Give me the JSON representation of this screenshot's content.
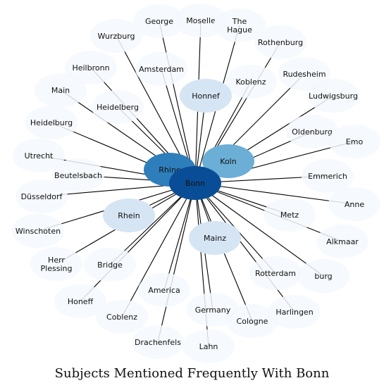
{
  "title": "Subjects Mentioned Frequently With Bonn",
  "center": "Bonn",
  "colors": {
    "edge": "#000000",
    "pale": "#f4f8fd",
    "light": "#d6e5f4",
    "mid": "#6baed6",
    "dark2": "#2e7ebc",
    "dark": "#084d96"
  },
  "nodes": [
    {
      "id": "bonn",
      "label": "Bonn",
      "shade": "dark"
    },
    {
      "id": "rhine",
      "label": "Rhine",
      "shade": "dark2"
    },
    {
      "id": "koln",
      "label": "Koln",
      "shade": "mid"
    },
    {
      "id": "honnef",
      "label": "Honnef",
      "shade": "light"
    },
    {
      "id": "mainz",
      "label": "Mainz",
      "shade": "light"
    },
    {
      "id": "rhein",
      "label": "Rhein",
      "shade": "light"
    },
    {
      "id": "george",
      "label": "George",
      "shade": "pale"
    },
    {
      "id": "moselle",
      "label": "Moselle",
      "shade": "pale"
    },
    {
      "id": "the-hague",
      "label": "The Hague",
      "shade": "pale"
    },
    {
      "id": "wurzburg",
      "label": "Wurzburg",
      "shade": "pale"
    },
    {
      "id": "rothenburg",
      "label": "Rothenburg",
      "shade": "pale"
    },
    {
      "id": "heilbronn",
      "label": "Heilbronn",
      "shade": "pale"
    },
    {
      "id": "amsterdam",
      "label": "Amsterdam",
      "shade": "pale"
    },
    {
      "id": "rudesheim",
      "label": "Rudesheim",
      "shade": "pale"
    },
    {
      "id": "main",
      "label": "Main",
      "shade": "pale"
    },
    {
      "id": "koblenz",
      "label": "Koblenz",
      "shade": "pale"
    },
    {
      "id": "ludwigsburg",
      "label": "Ludwigsburg",
      "shade": "pale"
    },
    {
      "id": "heidelberg",
      "label": "Heidelberg",
      "shade": "pale"
    },
    {
      "id": "heidelburg",
      "label": "Heidelburg",
      "shade": "pale"
    },
    {
      "id": "oldenburg",
      "label": "Oldenburg",
      "shade": "pale"
    },
    {
      "id": "emo",
      "label": "Emo",
      "shade": "pale"
    },
    {
      "id": "utrecht",
      "label": "Utrecht",
      "shade": "pale"
    },
    {
      "id": "beutelsbach",
      "label": "Beutelsbach",
      "shade": "pale"
    },
    {
      "id": "emmerich",
      "label": "Emmerich",
      "shade": "pale"
    },
    {
      "id": "dusseldorf",
      "label": "Düsseldorf",
      "shade": "pale"
    },
    {
      "id": "anne",
      "label": "Anne",
      "shade": "pale"
    },
    {
      "id": "metz",
      "label": "Metz",
      "shade": "pale"
    },
    {
      "id": "winschoten",
      "label": "Winschoten",
      "shade": "pale"
    },
    {
      "id": "alkmaar",
      "label": "Alkmaar",
      "shade": "pale"
    },
    {
      "id": "herr-plessing",
      "label": "Herr Plessing",
      "shade": "pale"
    },
    {
      "id": "bridge",
      "label": "Bridge",
      "shade": "pale"
    },
    {
      "id": "rotterdam",
      "label": "Rotterdam",
      "shade": "pale"
    },
    {
      "id": "burg",
      "label": "burg",
      "shade": "pale"
    },
    {
      "id": "america",
      "label": "America",
      "shade": "pale"
    },
    {
      "id": "honeff",
      "label": "Honeff",
      "shade": "pale"
    },
    {
      "id": "coblenz",
      "label": "Coblenz",
      "shade": "pale"
    },
    {
      "id": "germany",
      "label": "Germany",
      "shade": "pale"
    },
    {
      "id": "harlingen",
      "label": "Harlingen",
      "shade": "pale"
    },
    {
      "id": "cologne",
      "label": "Cologne",
      "shade": "pale"
    },
    {
      "id": "drachenfels",
      "label": "Drachenfels",
      "shade": "pale"
    },
    {
      "id": "lahn",
      "label": "Lahn",
      "shade": "pale"
    }
  ]
}
